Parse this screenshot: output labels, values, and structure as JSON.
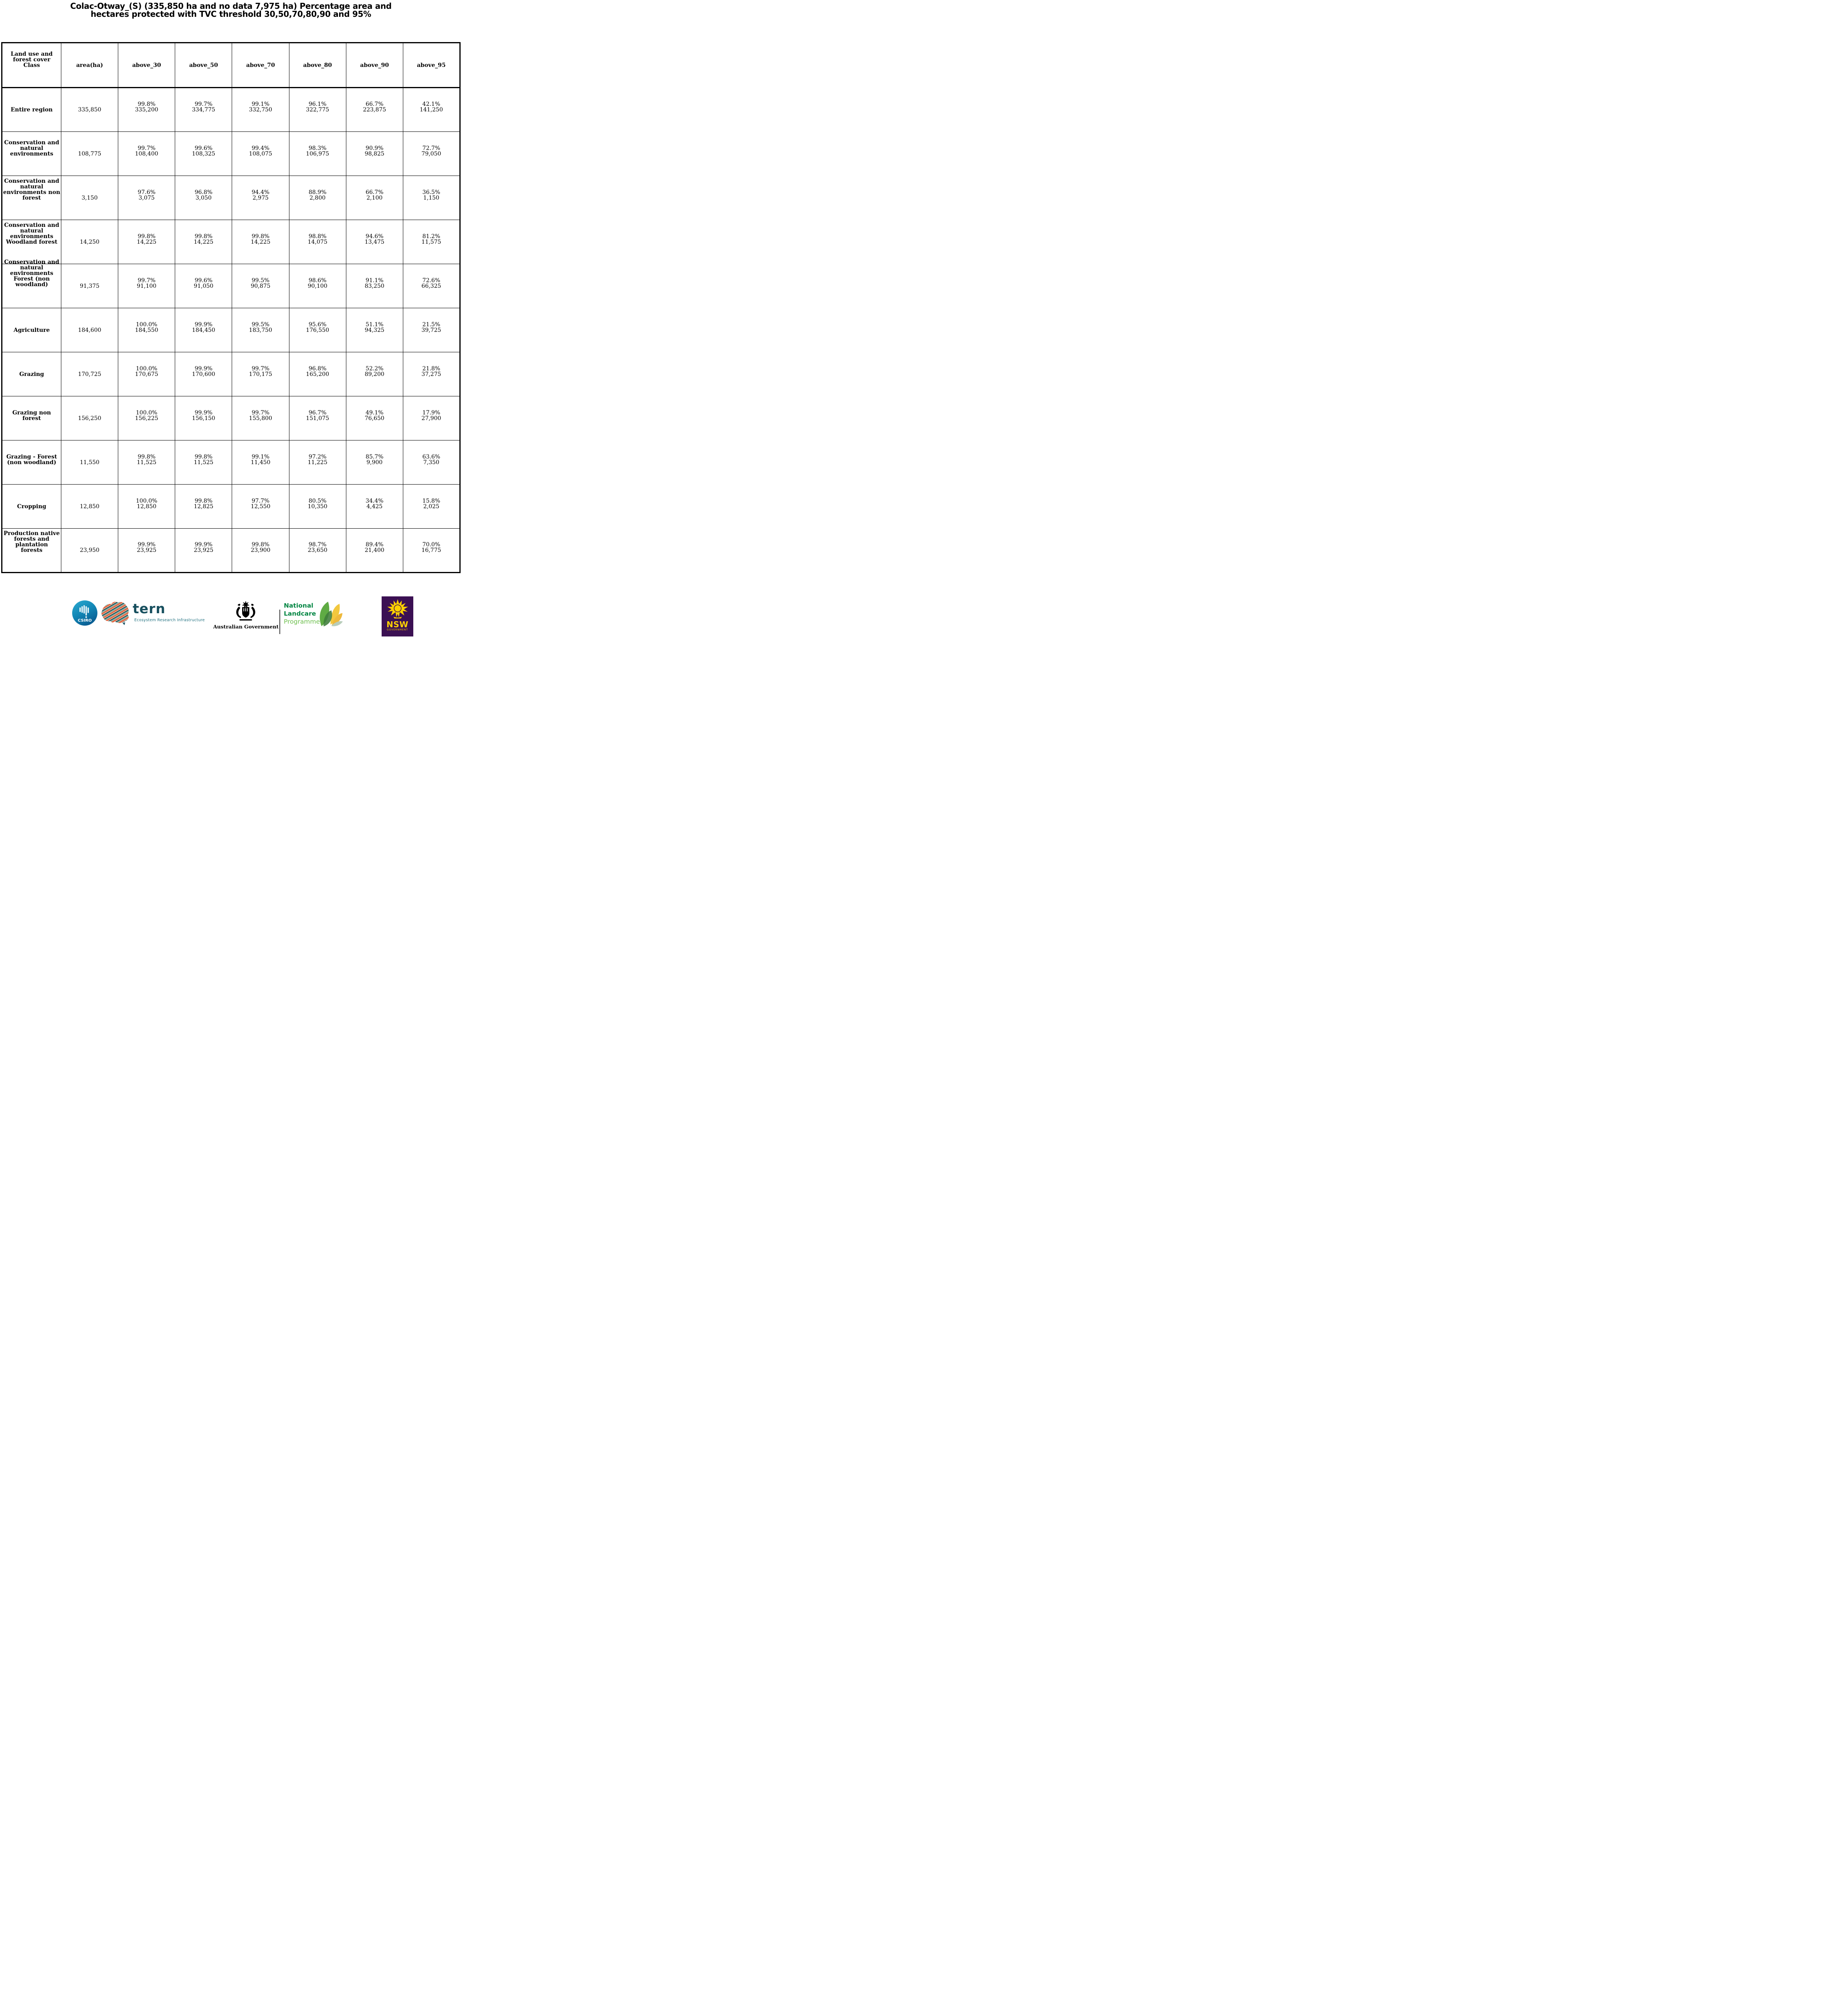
{
  "title": {
    "line1": "Colac-Otway_(S) (335,850 ha and no data 7,975 ha) Percentage area and",
    "line2": "hectares protected with TVC threshold 30,50,70,80,90 and 95%"
  },
  "table": {
    "header": {
      "col0_lines": [
        "Land use and",
        "forest cover",
        "Class"
      ],
      "cols": [
        "area(ha)",
        "above_30",
        "above_50",
        "above_70",
        "above_80",
        "above_90",
        "above_95"
      ]
    },
    "rows": [
      {
        "label": "Entire region",
        "label_lines": [
          "Entire region"
        ],
        "area": "335,850",
        "cells": [
          [
            "99.8%",
            "335,200"
          ],
          [
            "99.7%",
            "334,775"
          ],
          [
            "99.1%",
            "332,750"
          ],
          [
            "96.1%",
            "322,775"
          ],
          [
            "66.7%",
            "223,875"
          ],
          [
            "42.1%",
            "141,250"
          ]
        ]
      },
      {
        "label": "Conservation and natural environments",
        "label_lines": [
          "Conservation and",
          "natural",
          "environments"
        ],
        "area": "108,775",
        "cells": [
          [
            "99.7%",
            "108,400"
          ],
          [
            "99.6%",
            "108,325"
          ],
          [
            "99.4%",
            "108,075"
          ],
          [
            "98.3%",
            "106,975"
          ],
          [
            "90.9%",
            "98,825"
          ],
          [
            "72.7%",
            "79,050"
          ]
        ]
      },
      {
        "label": "Conservation and natural environments non forest",
        "label_lines": [
          "Conservation and",
          "natural",
          "environments non",
          "forest"
        ],
        "area": "3,150",
        "cells": [
          [
            "97.6%",
            "3,075"
          ],
          [
            "96.8%",
            "3,050"
          ],
          [
            "94.4%",
            "2,975"
          ],
          [
            "88.9%",
            "2,800"
          ],
          [
            "66.7%",
            "2,100"
          ],
          [
            "36.5%",
            "1,150"
          ]
        ]
      },
      {
        "label": "Conservation and natural environments Woodland forest",
        "label_lines": [
          "Conservation and",
          "natural",
          "environments",
          "Woodland forest"
        ],
        "area": "14,250",
        "cells": [
          [
            "99.8%",
            "14,225"
          ],
          [
            "99.8%",
            "14,225"
          ],
          [
            "99.8%",
            "14,225"
          ],
          [
            "98.8%",
            "14,075"
          ],
          [
            "94.6%",
            "13,475"
          ],
          [
            "81.2%",
            "11,575"
          ]
        ]
      },
      {
        "label": "Conservation and natural environments Forest (non woodland)",
        "label_lines": [
          "Conservation and",
          "natural",
          "environments",
          "Forest (non",
          "woodland)"
        ],
        "label_overflow": true,
        "area": "91,375",
        "cells": [
          [
            "99.7%",
            "91,100"
          ],
          [
            "99.6%",
            "91,050"
          ],
          [
            "99.5%",
            "90,875"
          ],
          [
            "98.6%",
            "90,100"
          ],
          [
            "91.1%",
            "83,250"
          ],
          [
            "72.6%",
            "66,325"
          ]
        ]
      },
      {
        "label": "Agriculture",
        "label_lines": [
          "Agriculture"
        ],
        "area": "184,600",
        "cells": [
          [
            "100.0%",
            "184,550"
          ],
          [
            "99.9%",
            "184,450"
          ],
          [
            "99.5%",
            "183,750"
          ],
          [
            "95.6%",
            "176,550"
          ],
          [
            "51.1%",
            "94,325"
          ],
          [
            "21.5%",
            "39,725"
          ]
        ]
      },
      {
        "label": "Grazing",
        "label_lines": [
          "Grazing"
        ],
        "area": "170,725",
        "cells": [
          [
            "100.0%",
            "170,675"
          ],
          [
            "99.9%",
            "170,600"
          ],
          [
            "99.7%",
            "170,175"
          ],
          [
            "96.8%",
            "165,200"
          ],
          [
            "52.2%",
            "89,200"
          ],
          [
            "21.8%",
            "37,275"
          ]
        ]
      },
      {
        "label": "Grazing non forest",
        "label_lines": [
          "Grazing non",
          "forest"
        ],
        "area": "156,250",
        "cells": [
          [
            "100.0%",
            "156,225"
          ],
          [
            "99.9%",
            "156,150"
          ],
          [
            "99.7%",
            "155,800"
          ],
          [
            "96.7%",
            "151,075"
          ],
          [
            "49.1%",
            "76,650"
          ],
          [
            "17.9%",
            "27,900"
          ]
        ]
      },
      {
        "label": "Grazing - Forest (non woodland)",
        "label_lines": [
          "Grazing - Forest",
          "(non woodland)"
        ],
        "area": "11,550",
        "cells": [
          [
            "99.8%",
            "11,525"
          ],
          [
            "99.8%",
            "11,525"
          ],
          [
            "99.1%",
            "11,450"
          ],
          [
            "97.2%",
            "11,225"
          ],
          [
            "85.7%",
            "9,900"
          ],
          [
            "63.6%",
            "7,350"
          ]
        ]
      },
      {
        "label": "Cropping",
        "label_lines": [
          "Cropping"
        ],
        "area": "12,850",
        "cells": [
          [
            "100.0%",
            "12,850"
          ],
          [
            "99.8%",
            "12,825"
          ],
          [
            "97.7%",
            "12,550"
          ],
          [
            "80.5%",
            "10,350"
          ],
          [
            "34.4%",
            "4,425"
          ],
          [
            "15.8%",
            "2,025"
          ]
        ]
      },
      {
        "label": "Production native forests and plantation forests",
        "label_lines": [
          "Production native",
          "forests and",
          "plantation",
          "forests"
        ],
        "area": "23,950",
        "cells": [
          [
            "99.9%",
            "23,925"
          ],
          [
            "99.9%",
            "23,925"
          ],
          [
            "99.8%",
            "23,900"
          ],
          [
            "98.7%",
            "23,650"
          ],
          [
            "89.4%",
            "21,400"
          ],
          [
            "70.0%",
            "16,775"
          ]
        ]
      }
    ]
  },
  "logos": {
    "csiro": {
      "text": "CSIRO"
    },
    "tern": {
      "name": "tern",
      "tagline": "Ecosystem Research Infrastructure"
    },
    "aus_gov": {
      "text": "Australian Government"
    },
    "landcare": {
      "line1": "National",
      "line2": "Landcare",
      "line3": "Programme"
    },
    "nsw": {
      "text": "NSW",
      "subtext": "GOVERNMENT"
    }
  },
  "colors": {
    "csiro_teal_light": "#2cabd1",
    "csiro_teal_dark": "#0a5f94",
    "tern_dark": "#174f5e",
    "tern_teal": "#20707f",
    "tern_orange": "#e4593b",
    "tern_salmon": "#f6c9a2",
    "landcare_green": "#008542",
    "landcare_light_green": "#6cbf4c",
    "nsw_purple": "#3b1053",
    "nsw_yellow": "#ffd100"
  }
}
